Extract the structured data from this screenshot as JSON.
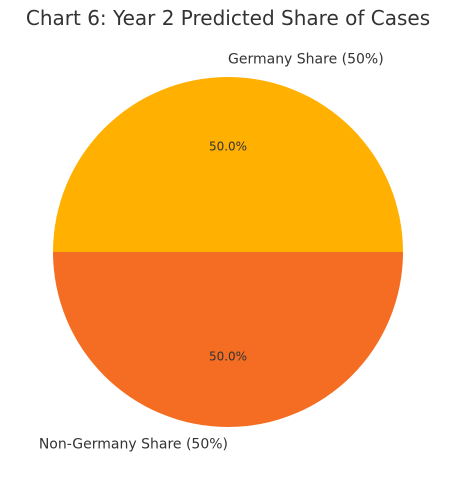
{
  "chart_data": {
    "type": "pie",
    "title": "Chart 6: Year 2 Predicted Share of Cases",
    "slices": [
      {
        "label": "Germany Share (50%)",
        "value": 50,
        "pct_label": "50.0%",
        "color": "#FFB000"
      },
      {
        "label": "Non-Germany Share (50%)",
        "value": 50,
        "pct_label": "50.0%",
        "color": "#F46D22"
      }
    ],
    "start_angle_deg": 0,
    "direction": "counterclockwise"
  }
}
